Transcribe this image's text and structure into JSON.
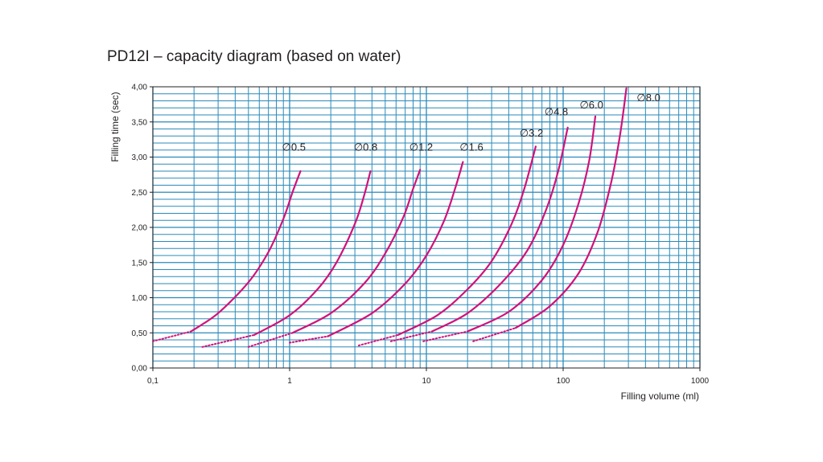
{
  "chart_data": {
    "type": "line",
    "title": "PD12I – capacity diagram (based on water)",
    "xlabel": "Filling volume (ml)",
    "ylabel": "Filling time (sec)",
    "xscale": "log",
    "xlim": [
      0.1,
      1000
    ],
    "ylim": [
      0,
      4
    ],
    "x_tick_values": [
      0.1,
      1,
      10,
      100,
      1000
    ],
    "x_tick_labels": [
      "0,1",
      "1",
      "10",
      "100",
      "1000"
    ],
    "y_tick_values": [
      0,
      0.5,
      1,
      1.5,
      2,
      2.5,
      3,
      3.5,
      4
    ],
    "y_tick_labels": [
      "0,00",
      "0,50",
      "1,00",
      "1,50",
      "2,00",
      "2,50",
      "3,00",
      "3,50",
      "4,00"
    ],
    "grid": true,
    "colors": {
      "grid": "#2a8ab9",
      "curve": "#d1127a",
      "text": "#231f20"
    },
    "diameter_symbol": "∅",
    "series": [
      {
        "name": "0.5",
        "dotted": [
          [
            0.1,
            0.38
          ],
          [
            0.19,
            0.52
          ]
        ],
        "x": [
          0.19,
          0.3,
          0.5,
          0.7,
          0.9,
          1.05,
          1.2
        ],
        "y": [
          0.52,
          0.78,
          1.22,
          1.65,
          2.12,
          2.5,
          2.8
        ]
      },
      {
        "name": "0.8",
        "dotted": [
          [
            0.23,
            0.3
          ],
          [
            0.55,
            0.47
          ]
        ],
        "x": [
          0.55,
          1.0,
          1.6,
          2.2,
          3.0,
          3.5,
          3.9
        ],
        "y": [
          0.47,
          0.75,
          1.12,
          1.5,
          2.05,
          2.45,
          2.8
        ]
      },
      {
        "name": "1.2",
        "dotted": [
          [
            0.5,
            0.3
          ],
          [
            1.05,
            0.5
          ]
        ],
        "x": [
          1.05,
          2.0,
          3.5,
          5.0,
          6.8,
          8.0,
          9.0
        ],
        "y": [
          0.5,
          0.78,
          1.2,
          1.63,
          2.15,
          2.55,
          2.82
        ]
      },
      {
        "name": "1.6",
        "dotted": [
          [
            1.0,
            0.36
          ],
          [
            1.9,
            0.45
          ]
        ],
        "x": [
          1.9,
          4.0,
          7.0,
          10.0,
          13.5,
          16.5,
          18.5
        ],
        "y": [
          0.45,
          0.78,
          1.2,
          1.6,
          2.1,
          2.6,
          2.93
        ]
      },
      {
        "name": "3.2",
        "dotted": [
          [
            3.2,
            0.32
          ],
          [
            6.2,
            0.47
          ]
        ],
        "x": [
          6.2,
          12,
          20,
          30,
          42,
          52,
          63
        ],
        "y": [
          0.47,
          0.75,
          1.12,
          1.52,
          2.05,
          2.55,
          3.15
        ]
      },
      {
        "name": "4.8",
        "dotted": [
          [
            5.5,
            0.38
          ],
          [
            11,
            0.52
          ]
        ],
        "x": [
          11,
          20,
          35,
          55,
          75,
          92,
          108
        ],
        "y": [
          0.52,
          0.78,
          1.2,
          1.68,
          2.25,
          2.8,
          3.42
        ]
      },
      {
        "name": "6.0",
        "dotted": [
          [
            9.5,
            0.38
          ],
          [
            20,
            0.52
          ]
        ],
        "x": [
          20,
          40,
          70,
          100,
          130,
          155,
          172
        ],
        "y": [
          0.52,
          0.8,
          1.25,
          1.75,
          2.35,
          2.95,
          3.58
        ]
      },
      {
        "name": "8.0",
        "dotted": [
          [
            22,
            0.38
          ],
          [
            45,
            0.57
          ]
        ],
        "x": [
          45,
          80,
          130,
          180,
          225,
          260,
          290
        ],
        "y": [
          0.57,
          0.88,
          1.35,
          1.95,
          2.65,
          3.3,
          3.98
        ]
      }
    ],
    "curve_labels": [
      {
        "text": "0.5",
        "x": 0.88,
        "y": 3.15
      },
      {
        "text": "0.8",
        "x": 2.95,
        "y": 3.15
      },
      {
        "text": "1.2",
        "x": 7.5,
        "y": 3.15
      },
      {
        "text": "1.6",
        "x": 17.5,
        "y": 3.15
      },
      {
        "text": "3.2",
        "x": 48,
        "y": 3.35
      },
      {
        "text": "4.8",
        "x": 73,
        "y": 3.65
      },
      {
        "text": "6.0",
        "x": 132,
        "y": 3.75
      },
      {
        "text": "8.0",
        "x": 345,
        "y": 3.85
      }
    ]
  }
}
